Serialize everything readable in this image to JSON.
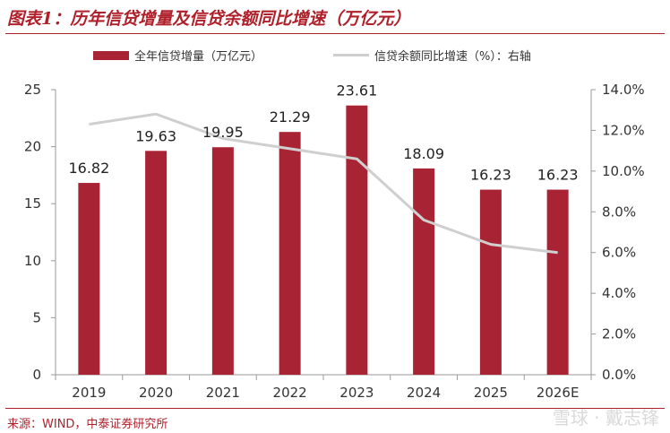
{
  "header": {
    "title": "图表1：历年信贷增量及信贷余额同比增速（万亿元）"
  },
  "footer": {
    "source": "来源：WIND，中泰证券研究所",
    "watermark": "雪球 · 戴志锋"
  },
  "chart_data": {
    "type": "bar",
    "categories": [
      "2019",
      "2020",
      "2021",
      "2022",
      "2023",
      "2024",
      "2025",
      "2026E"
    ],
    "series": [
      {
        "name": "全年信贷增量（万亿元）",
        "type": "bar",
        "axis": "left",
        "color": "#a82333",
        "values": [
          16.82,
          19.63,
          19.95,
          21.29,
          23.61,
          18.09,
          16.23,
          16.23
        ],
        "labels": [
          "16.82",
          "19.63",
          "19.95",
          "21.29",
          "23.61",
          "18.09",
          "16.23",
          "16.23"
        ]
      },
      {
        "name": "信贷余额同比增速（%）：右轴",
        "type": "line",
        "axis": "right",
        "color": "#cfcfcf",
        "values": [
          12.3,
          12.8,
          11.6,
          11.1,
          10.6,
          7.6,
          6.4,
          6.0
        ]
      }
    ],
    "left_axis": {
      "ylim": [
        0,
        25
      ],
      "ticks": [
        "0",
        "5",
        "10",
        "15",
        "20",
        "25"
      ]
    },
    "right_axis": {
      "ylim": [
        0,
        14
      ],
      "ticks": [
        "0.0%",
        "2.0%",
        "4.0%",
        "6.0%",
        "8.0%",
        "10.0%",
        "12.0%",
        "14.0%"
      ]
    },
    "grid": false,
    "legend_position": "top"
  }
}
